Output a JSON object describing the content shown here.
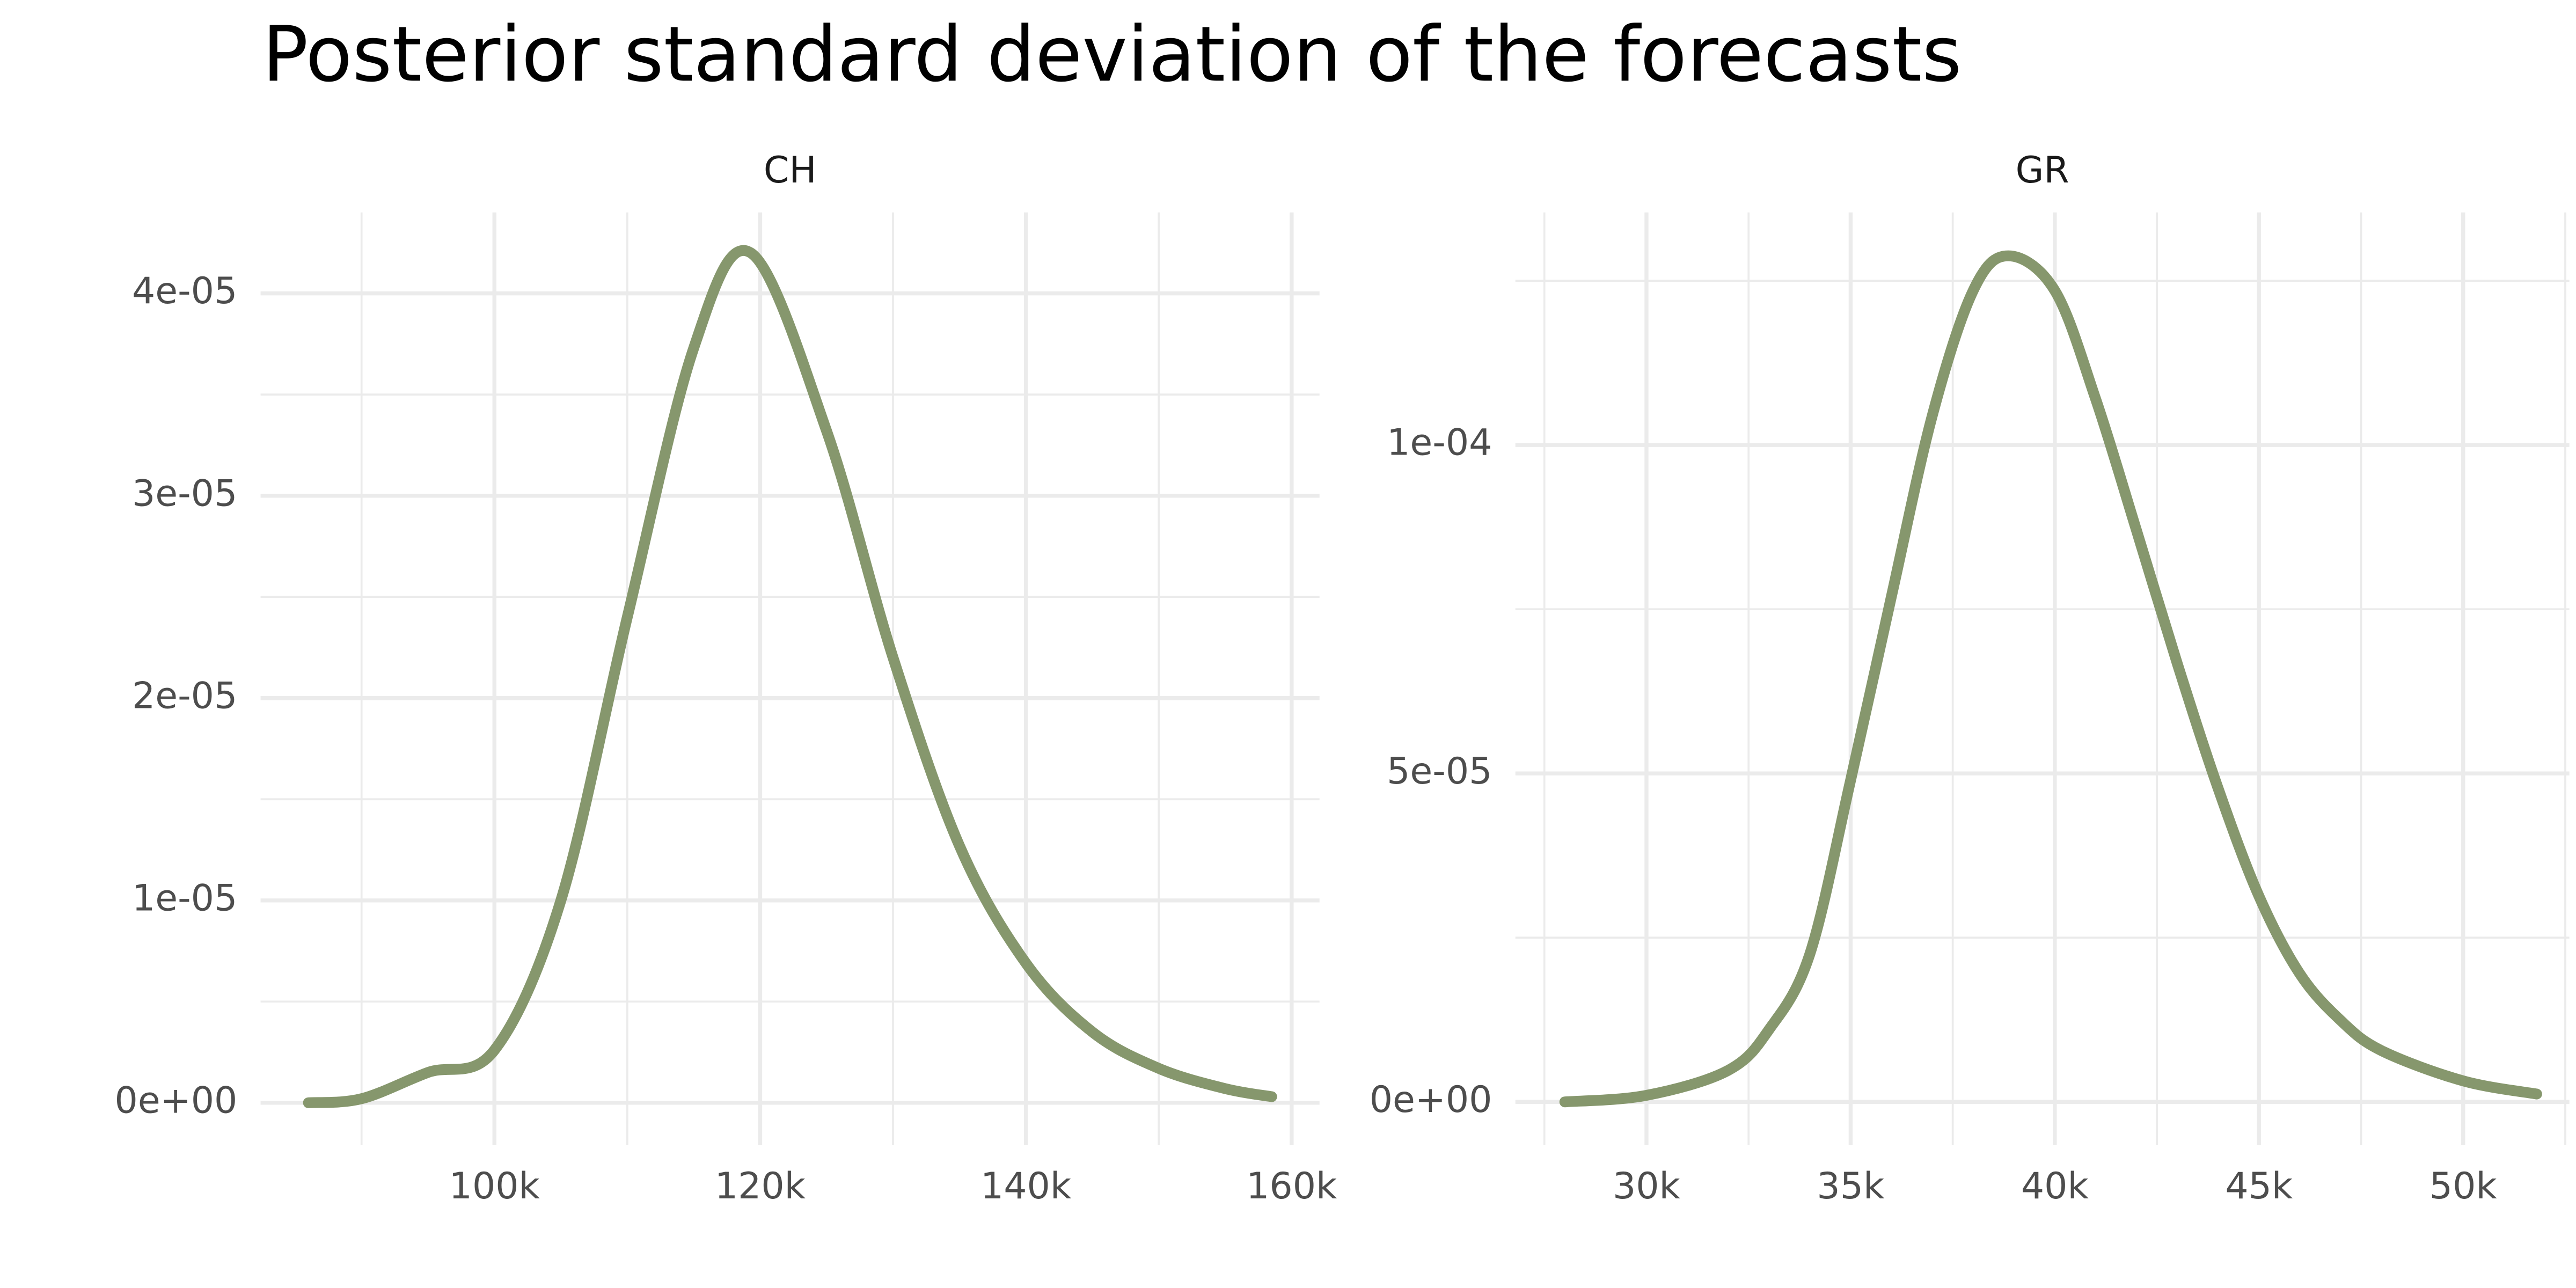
{
  "title": "Posterior standard deviation of the forecasts",
  "chart_data": [
    {
      "type": "line",
      "title": "CH",
      "color": "#86976d",
      "grid": true,
      "x": [
        86000,
        90000,
        95000,
        100000,
        105000,
        110000,
        115000,
        119300,
        125000,
        130000,
        135000,
        140000,
        145000,
        150000,
        155000,
        158500
      ],
      "values": [
        0.0,
        2e-07,
        1.5e-06,
        2.6e-06,
        1e-05,
        2.4e-05,
        3.73e-05,
        4.2e-05,
        3.32e-05,
        2.2e-05,
        1.27e-05,
        6.9e-06,
        3.5e-06,
        1.7e-06,
        7e-07,
        3e-07
      ],
      "xlim": [
        82400,
        162100
      ],
      "xticks": [
        {
          "value": 100000,
          "label": "100k"
        },
        {
          "value": 120000,
          "label": "120k"
        },
        {
          "value": 140000,
          "label": "140k"
        },
        {
          "value": 160000,
          "label": "160k"
        }
      ],
      "xminor": [
        90000,
        110000,
        130000,
        150000
      ],
      "ylim": [
        -2.1e-06,
        4.4e-05
      ],
      "yticks": [
        {
          "value": 0,
          "label": "0e+00"
        },
        {
          "value": 1e-05,
          "label": "1e-05"
        },
        {
          "value": 2e-05,
          "label": "2e-05"
        },
        {
          "value": 3e-05,
          "label": "3e-05"
        },
        {
          "value": 4e-05,
          "label": "4e-05"
        }
      ],
      "yminor": [
        5e-06,
        1.5e-05,
        2.5e-05,
        3.5e-05
      ]
    },
    {
      "type": "line",
      "title": "GR",
      "color": "#86976d",
      "grid": true,
      "x": [
        28000,
        30000,
        32000,
        33000,
        34000,
        35000,
        36000,
        37000,
        38000,
        38860,
        40000,
        41000,
        42000,
        43000,
        44000,
        45000,
        46000,
        47000,
        48000,
        50000,
        51800
      ],
      "values": [
        0.0,
        1e-06,
        4.8e-06,
        1.1e-05,
        2.25e-05,
        4.9e-05,
        7.7e-05,
        0.0001045,
        0.0001235,
        0.0001288,
        0.0001235,
        0.000107,
        8.7e-05,
        6.67e-05,
        4.77e-05,
        3.13e-05,
        1.95e-05,
        1.24e-05,
        7.8e-06,
        3.2e-06,
        1.2e-06
      ],
      "xlim": [
        26790,
        52600
      ],
      "xticks": [
        {
          "value": 30000,
          "label": "30k"
        },
        {
          "value": 35000,
          "label": "35k"
        },
        {
          "value": 40000,
          "label": "40k"
        },
        {
          "value": 45000,
          "label": "45k"
        },
        {
          "value": 50000,
          "label": "50k"
        }
      ],
      "xminor": [
        27500,
        32500,
        37500,
        42500,
        47500,
        52500
      ],
      "ylim": [
        -6.6e-06,
        0.0001354
      ],
      "yticks": [
        {
          "value": 0,
          "label": "0e+00"
        },
        {
          "value": 5e-05,
          "label": "5e-05"
        },
        {
          "value": 0.0001,
          "label": "1e-04"
        }
      ],
      "yminor": [
        2.5e-05,
        7.5e-05,
        0.000125
      ]
    }
  ]
}
